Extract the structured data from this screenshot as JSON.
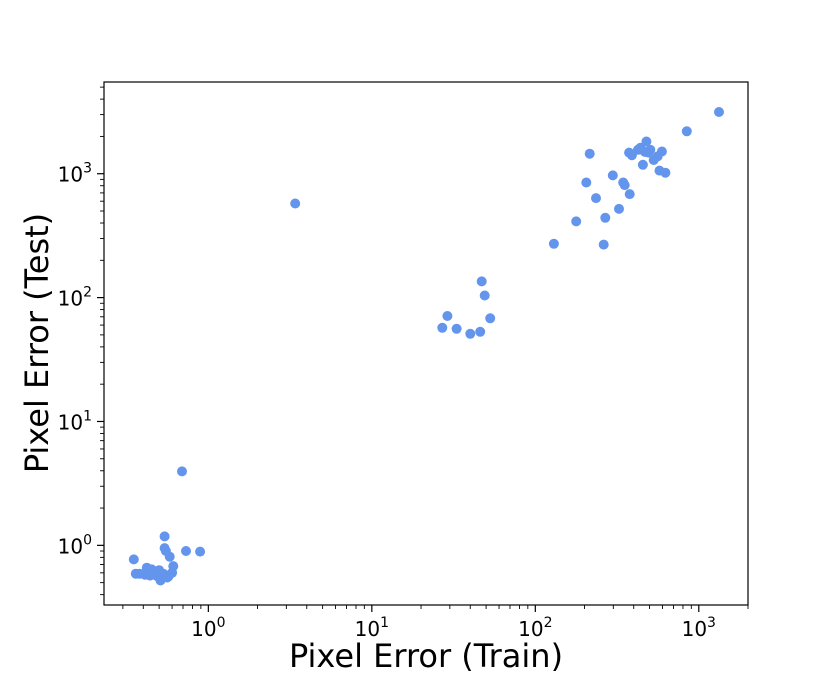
{
  "chart_data": {
    "type": "scatter",
    "xlabel": "Pixel Error (Train)",
    "ylabel": "Pixel Error (Test)",
    "xscale": "log",
    "yscale": "log",
    "xlim": [
      0.23,
      2000
    ],
    "ylim": [
      0.33,
      5500
    ],
    "grid": false,
    "marker_color": "#6495ed",
    "x_ticks": [
      {
        "base": "10",
        "exp": "0",
        "value": 1
      },
      {
        "base": "10",
        "exp": "1",
        "value": 10
      },
      {
        "base": "10",
        "exp": "2",
        "value": 100
      },
      {
        "base": "10",
        "exp": "3",
        "value": 1000
      }
    ],
    "y_ticks": [
      {
        "base": "10",
        "exp": "0",
        "value": 1
      },
      {
        "base": "10",
        "exp": "1",
        "value": 10
      },
      {
        "base": "10",
        "exp": "2",
        "value": 100
      },
      {
        "base": "10",
        "exp": "3",
        "value": 1000
      }
    ],
    "points": [
      {
        "x": 0.35,
        "y": 0.77
      },
      {
        "x": 0.36,
        "y": 0.59
      },
      {
        "x": 0.38,
        "y": 0.59
      },
      {
        "x": 0.41,
        "y": 0.58
      },
      {
        "x": 0.42,
        "y": 0.66
      },
      {
        "x": 0.43,
        "y": 0.6
      },
      {
        "x": 0.44,
        "y": 0.57
      },
      {
        "x": 0.45,
        "y": 0.64
      },
      {
        "x": 0.46,
        "y": 0.61
      },
      {
        "x": 0.47,
        "y": 0.58
      },
      {
        "x": 0.49,
        "y": 0.56
      },
      {
        "x": 0.5,
        "y": 0.63
      },
      {
        "x": 0.51,
        "y": 0.52
      },
      {
        "x": 0.52,
        "y": 0.55
      },
      {
        "x": 0.53,
        "y": 0.59
      },
      {
        "x": 0.54,
        "y": 1.18
      },
      {
        "x": 0.54,
        "y": 0.95
      },
      {
        "x": 0.55,
        "y": 0.9
      },
      {
        "x": 0.56,
        "y": 0.55
      },
      {
        "x": 0.57,
        "y": 0.56
      },
      {
        "x": 0.58,
        "y": 0.81
      },
      {
        "x": 0.6,
        "y": 0.6
      },
      {
        "x": 0.61,
        "y": 0.68
      },
      {
        "x": 0.69,
        "y": 3.95
      },
      {
        "x": 0.73,
        "y": 0.9
      },
      {
        "x": 0.89,
        "y": 0.89
      },
      {
        "x": 3.4,
        "y": 575
      },
      {
        "x": 27,
        "y": 57
      },
      {
        "x": 29,
        "y": 71
      },
      {
        "x": 33,
        "y": 56
      },
      {
        "x": 40,
        "y": 51
      },
      {
        "x": 46,
        "y": 53
      },
      {
        "x": 47,
        "y": 135
      },
      {
        "x": 49,
        "y": 104
      },
      {
        "x": 53,
        "y": 68
      },
      {
        "x": 130,
        "y": 272
      },
      {
        "x": 178,
        "y": 412
      },
      {
        "x": 205,
        "y": 850
      },
      {
        "x": 215,
        "y": 1450
      },
      {
        "x": 235,
        "y": 635
      },
      {
        "x": 262,
        "y": 268
      },
      {
        "x": 268,
        "y": 441
      },
      {
        "x": 298,
        "y": 970
      },
      {
        "x": 325,
        "y": 520
      },
      {
        "x": 345,
        "y": 850
      },
      {
        "x": 352,
        "y": 810
      },
      {
        "x": 375,
        "y": 1480
      },
      {
        "x": 378,
        "y": 685
      },
      {
        "x": 390,
        "y": 1410
      },
      {
        "x": 425,
        "y": 1560
      },
      {
        "x": 440,
        "y": 1620
      },
      {
        "x": 455,
        "y": 1180
      },
      {
        "x": 468,
        "y": 1500
      },
      {
        "x": 478,
        "y": 1820
      },
      {
        "x": 492,
        "y": 1480
      },
      {
        "x": 505,
        "y": 1560
      },
      {
        "x": 530,
        "y": 1290
      },
      {
        "x": 560,
        "y": 1380
      },
      {
        "x": 575,
        "y": 1060
      },
      {
        "x": 595,
        "y": 1510
      },
      {
        "x": 625,
        "y": 1020
      },
      {
        "x": 845,
        "y": 2200
      },
      {
        "x": 1330,
        "y": 3150
      }
    ]
  }
}
